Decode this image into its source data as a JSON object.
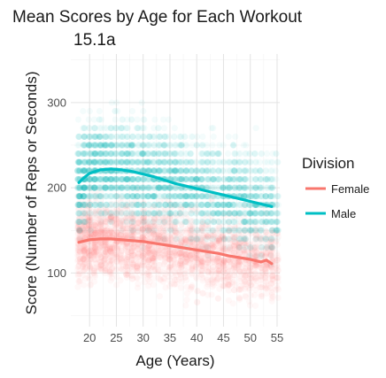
{
  "chart_data": {
    "type": "scatter",
    "title": "Mean Scores by Age for Each Workout",
    "subtitle": "15.1a",
    "xlabel": "Age (Years)",
    "ylabel": "Score (Number of Reps or Seconds)",
    "xlim": [
      16.5,
      55.5
    ],
    "ylim": [
      37,
      357
    ],
    "x_ticks": [
      20,
      25,
      30,
      35,
      40,
      45,
      50,
      55
    ],
    "y_ticks": [
      100,
      200,
      300
    ],
    "grid": true,
    "legend": {
      "title": "Division",
      "position": "right"
    },
    "series": [
      {
        "name": "Female",
        "color": "#F8766D",
        "point_range": [
          [
            18,
            55
          ],
          [
            60,
            210
          ]
        ],
        "mean_line": {
          "x": [
            18,
            20,
            22,
            24,
            26,
            28,
            30,
            32,
            34,
            36,
            38,
            40,
            42,
            44,
            46,
            48,
            50,
            52,
            53,
            54
          ],
          "y": [
            136,
            139,
            140,
            140,
            139,
            138,
            137,
            135,
            133,
            131,
            129,
            127,
            125,
            123,
            120,
            118,
            116,
            113,
            115,
            111
          ]
        }
      },
      {
        "name": "Male",
        "color": "#00BFC4",
        "point_range": [
          [
            18,
            55
          ],
          [
            110,
            320
          ]
        ],
        "mean_line": {
          "x": [
            18,
            19,
            20,
            22,
            24,
            26,
            28,
            30,
            32,
            34,
            36,
            38,
            40,
            42,
            44,
            46,
            48,
            50,
            52,
            54
          ],
          "y": [
            206,
            212,
            217,
            221,
            222,
            221,
            219,
            216,
            213,
            209,
            205,
            202,
            199,
            196,
            193,
            190,
            187,
            184,
            181,
            178
          ]
        }
      }
    ]
  }
}
